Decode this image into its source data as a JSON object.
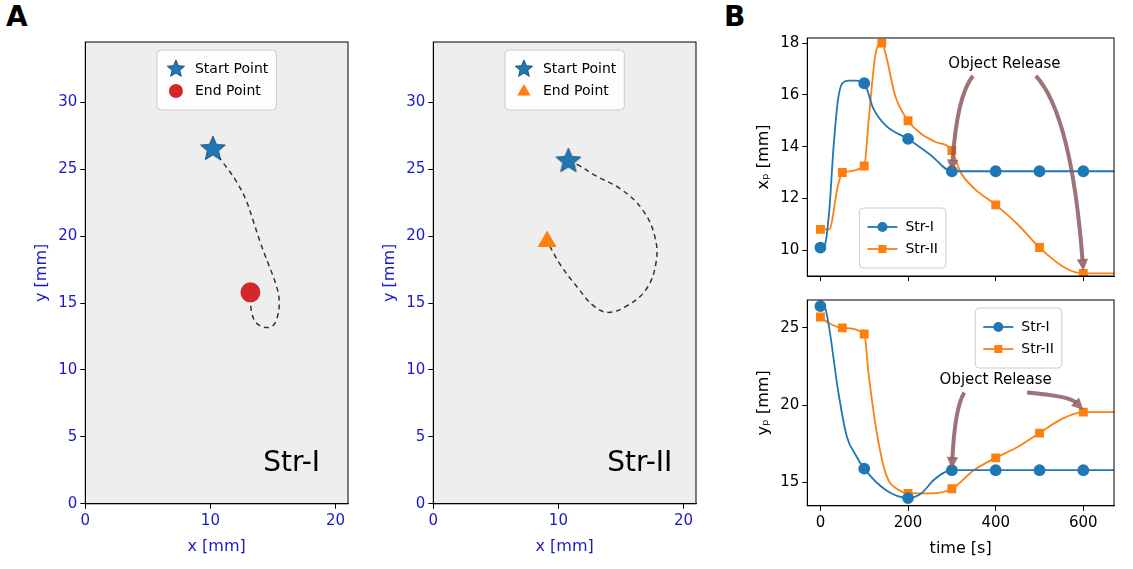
{
  "panel_labels": [
    "A",
    "B"
  ],
  "chart_data": [
    {
      "type": "scatter",
      "xlabel": "x [mm]",
      "ylabel": "y [mm]",
      "xlim": [
        0,
        21
      ],
      "xticks": [
        0,
        10,
        20
      ],
      "ylim": [
        0,
        34.5
      ],
      "yticks": [
        0,
        5,
        10,
        15,
        20,
        25,
        30
      ],
      "grid": false,
      "legend": "upper center",
      "series": [
        {
          "name": "Start Point",
          "color": "#1f77b4",
          "marker": "star",
          "x": [
            10.2
          ],
          "values": [
            26.5
          ]
        },
        {
          "name": "End Point",
          "color": "#d62728",
          "marker": "circle",
          "x": [
            13.2
          ],
          "values": [
            15.8
          ]
        }
      ],
      "trajectory": {
        "x": [
          10.2,
          11,
          12,
          12.8,
          13.4,
          14,
          14.6,
          15.2,
          15.5,
          15.3,
          14.8,
          13.8,
          13.3,
          13.2
        ],
        "values": [
          26.5,
          25.5,
          24.2,
          22.8,
          21.2,
          19.5,
          18,
          16.5,
          15.2,
          13.8,
          13.2,
          13.4,
          14.3,
          15.8
        ],
        "line_style": "dashed",
        "color": "#333333"
      },
      "annotations": [
        {
          "text": "Str-I",
          "x": 16.5,
          "y": 3
        }
      ]
    },
    {
      "type": "scatter",
      "xlabel": "x [mm]",
      "ylabel": "y [mm]",
      "xlim": [
        0,
        21
      ],
      "xticks": [
        0,
        10,
        20
      ],
      "ylim": [
        0,
        34.5
      ],
      "yticks": [
        0,
        5,
        10,
        15,
        20,
        25,
        30
      ],
      "grid": false,
      "legend": "upper center",
      "series": [
        {
          "name": "Start Point",
          "color": "#1f77b4",
          "marker": "star",
          "x": [
            10.8
          ],
          "values": [
            25.6
          ]
        },
        {
          "name": "End Point",
          "color": "#ff7f0e",
          "marker": "triangle",
          "x": [
            9.1
          ],
          "values": [
            19.6
          ]
        }
      ],
      "trajectory": {
        "x": [
          10.8,
          11.6,
          13,
          15,
          16.7,
          17.7,
          17.8,
          17,
          15.5,
          14,
          12.8,
          11.5,
          10.2,
          9.1
        ],
        "values": [
          25.6,
          25.3,
          24.5,
          23.5,
          22,
          20,
          18,
          16,
          14.8,
          14.3,
          14.8,
          16.2,
          17.8,
          19.6
        ],
        "line_style": "dashed",
        "color": "#333333"
      },
      "annotations": [
        {
          "text": "Str-II",
          "x": 16.5,
          "y": 3
        }
      ]
    },
    {
      "type": "line",
      "ylabel": "xₚ [mm]",
      "xlim": [
        -30,
        670
      ],
      "xticks": [
        0,
        200,
        400,
        600
      ],
      "ylim": [
        9,
        18.2
      ],
      "yticks": [
        10,
        12,
        14,
        16,
        18
      ],
      "grid": false,
      "tick_labels": "y",
      "legend": "lower left",
      "series": [
        {
          "name": "Str-I",
          "color": "#1f77b4",
          "marker": "circle",
          "x": [
            0,
            10,
            20,
            30,
            40,
            50,
            65,
            80,
            100,
            120,
            150,
            200,
            250,
            300,
            400,
            500,
            600,
            670
          ],
          "values": [
            10.1,
            10.2,
            11.5,
            14,
            15.8,
            16.45,
            16.55,
            16.55,
            16.45,
            15.5,
            14.8,
            14.3,
            13.7,
            13.05,
            13.05,
            13.05,
            13.05,
            13.05
          ],
          "markers_at": [
            0,
            100,
            200,
            300,
            400,
            500,
            600
          ]
        },
        {
          "name": "Str-II",
          "color": "#ff7f0e",
          "marker": "square",
          "x": [
            0,
            20,
            40,
            50,
            100,
            110,
            125,
            140,
            150,
            170,
            200,
            230,
            260,
            300,
            320,
            350,
            400,
            450,
            500,
            560,
            600,
            670
          ],
          "values": [
            10.8,
            10.8,
            12.5,
            13.0,
            13.25,
            15.0,
            17.5,
            18.0,
            17.5,
            16.0,
            15.0,
            14.5,
            14.2,
            13.85,
            13.0,
            12.4,
            11.75,
            11.0,
            10.1,
            9.3,
            9.1,
            9.1
          ],
          "markers_at": [
            0,
            50,
            100,
            140,
            200,
            300,
            400,
            500,
            600
          ]
        }
      ],
      "annotations": [
        {
          "text": "Object Release",
          "x": 420,
          "y": 17.2,
          "arrows": [
            [
              300,
              13.05
            ],
            [
              600,
              9.2
            ]
          ]
        }
      ]
    },
    {
      "type": "line",
      "xlabel": "time [s]",
      "ylabel": "yₚ [mm]",
      "xlim": [
        -30,
        670
      ],
      "xticks": [
        0,
        200,
        400,
        600
      ],
      "ylim": [
        13.5,
        26.8
      ],
      "yticks": [
        15,
        20,
        25
      ],
      "grid": false,
      "legend": "upper right",
      "series": [
        {
          "name": "Str-I",
          "color": "#1f77b4",
          "marker": "circle",
          "x": [
            0,
            10,
            20,
            40,
            60,
            80,
            100,
            150,
            200,
            230,
            260,
            300,
            400,
            500,
            600,
            670
          ],
          "values": [
            26.4,
            26.3,
            25,
            21,
            18,
            16.8,
            15.9,
            14.5,
            14.0,
            14.3,
            15.2,
            15.8,
            15.8,
            15.8,
            15.8,
            15.8
          ],
          "markers_at": [
            0,
            100,
            200,
            300,
            400,
            500,
            600
          ]
        },
        {
          "name": "Str-II",
          "color": "#ff7f0e",
          "marker": "square",
          "x": [
            0,
            20,
            50,
            100,
            110,
            130,
            150,
            180,
            200,
            250,
            300,
            350,
            400,
            450,
            500,
            550,
            600,
            670
          ],
          "values": [
            25.7,
            25.3,
            25.0,
            24.6,
            22,
            18,
            15.5,
            14.5,
            14.3,
            14.3,
            14.6,
            15.8,
            16.6,
            17.3,
            18.2,
            19.1,
            19.55,
            19.55
          ],
          "markers_at": [
            0,
            50,
            100,
            200,
            300,
            400,
            500,
            600
          ]
        }
      ],
      "annotations": [
        {
          "text": "Object Release",
          "x": 400,
          "y": 21.6,
          "arrows": [
            [
              300,
              15.9
            ],
            [
              600,
              19.7
            ]
          ]
        }
      ]
    }
  ]
}
